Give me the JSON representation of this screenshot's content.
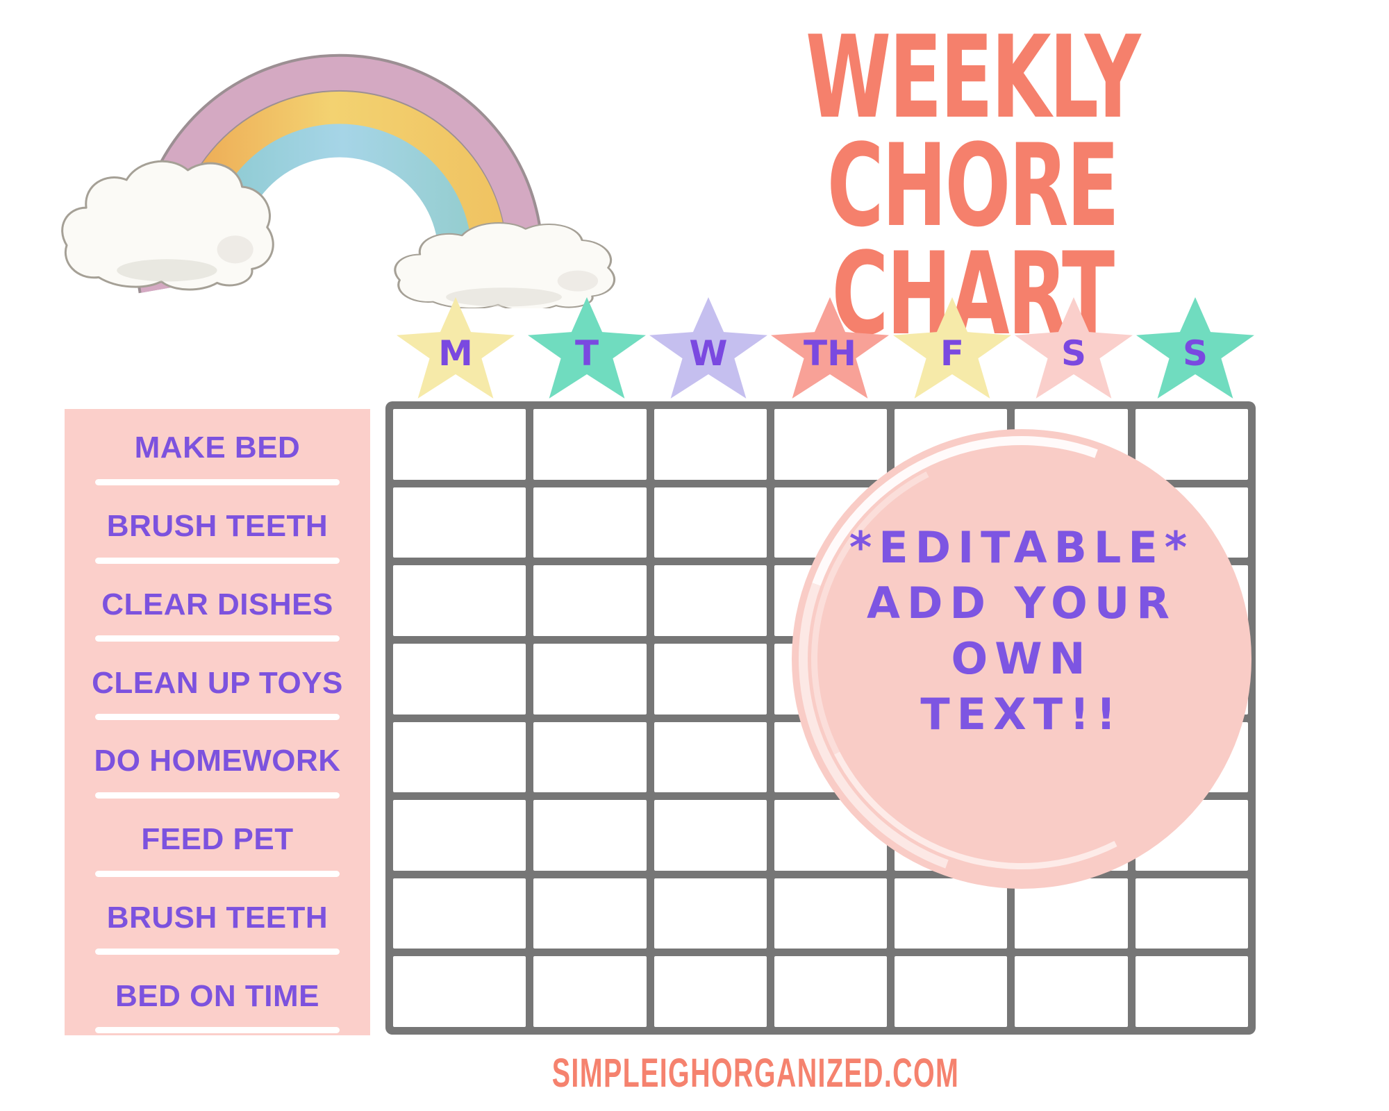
{
  "title": {
    "line1": "WEEKLY CHORE",
    "line2": "CHART"
  },
  "days": [
    {
      "label": "M",
      "color": "#F6EAA9"
    },
    {
      "label": "T",
      "color": "#70DCBF"
    },
    {
      "label": "W",
      "color": "#C5BFEF"
    },
    {
      "label": "TH",
      "color": "#F8A197"
    },
    {
      "label": "F",
      "color": "#F6EAA9"
    },
    {
      "label": "S",
      "color": "#FACFCB"
    },
    {
      "label": "S",
      "color": "#70DCBF"
    }
  ],
  "chores": [
    "MAKE BED",
    "BRUSH TEETH",
    "CLEAR DISHES",
    "CLEAN UP TOYS",
    "DO HOMEWORK",
    "FEED PET",
    "BRUSH TEETH",
    "BED ON TIME"
  ],
  "grid": {
    "rows": 8,
    "columns": 7
  },
  "badge": {
    "lines": [
      "*EDITABLE*",
      "ADD YOUR",
      "OWN",
      "TEXT!!"
    ]
  },
  "footer": {
    "text": "SIMPLEIGHORGANIZED.COM"
  },
  "colors": {
    "title": "#F5806C",
    "footer": "#F5826E",
    "day_letter": "#7A49E0",
    "chore_text": "#7C52DE",
    "chore_panel": "#FBCFCA",
    "grid_lines": "#767676",
    "badge_fill": "#F9CCC6",
    "badge_text": "#7D55E2"
  }
}
